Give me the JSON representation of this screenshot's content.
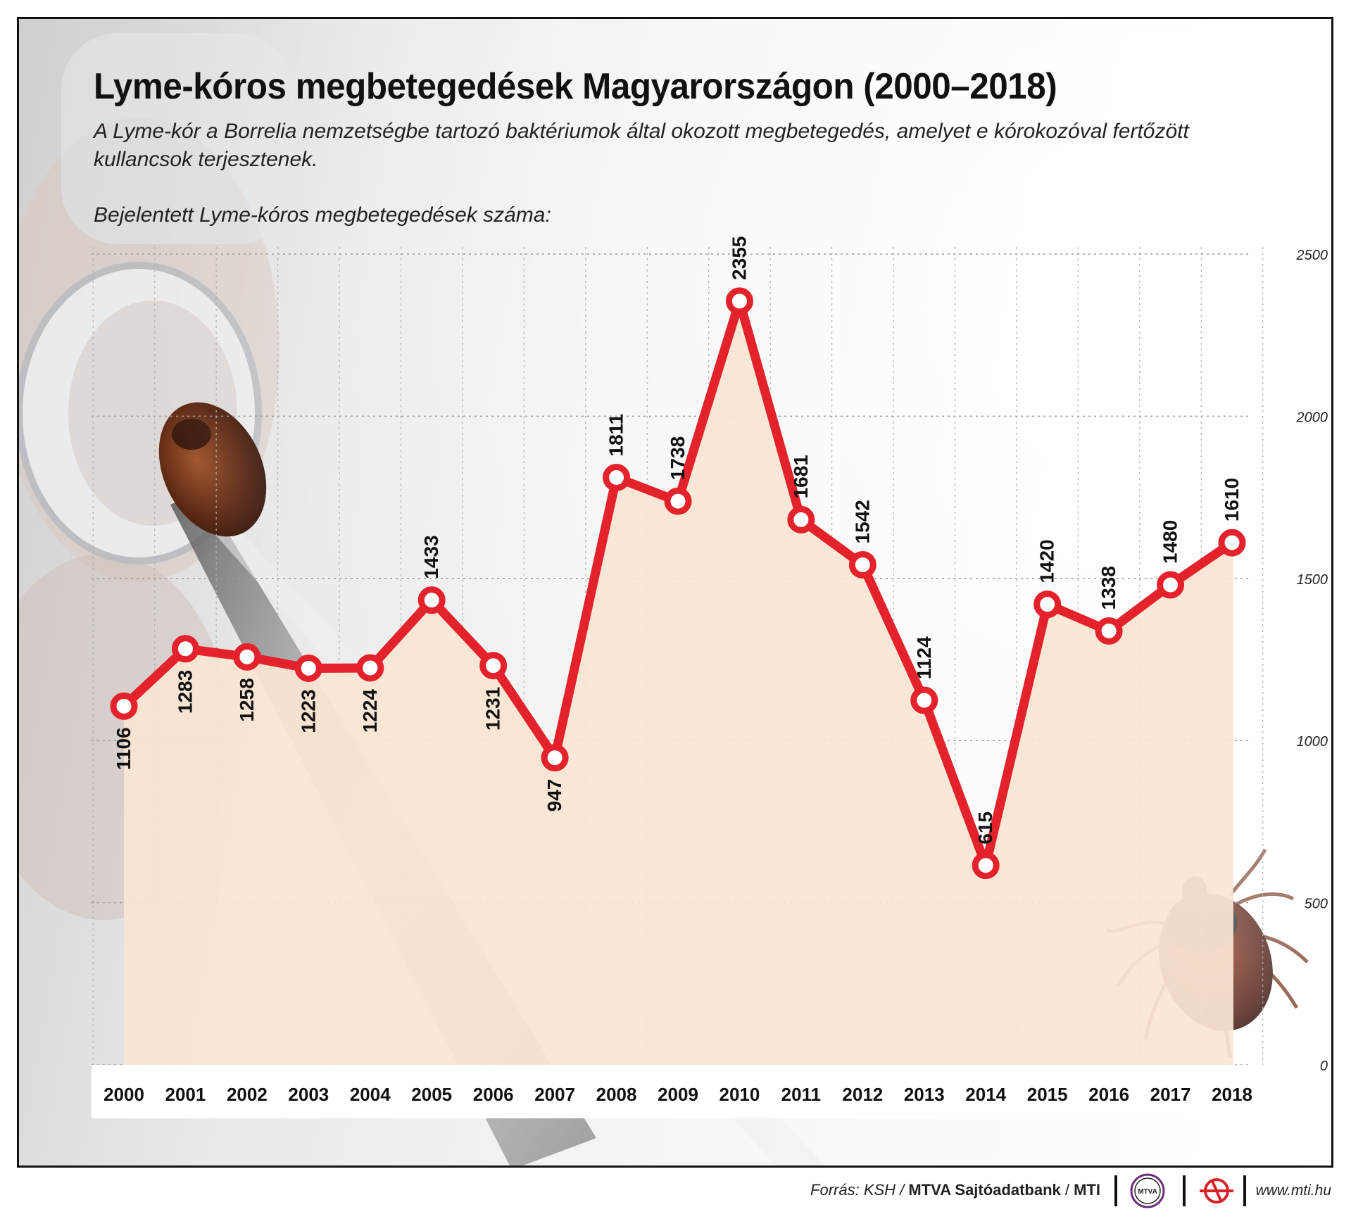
{
  "title": "Lyme-kóros megbetegedések Magyarországon (2000–2018)",
  "subtitle": "A Lyme-kór a Borrelia nemzetségbe tartozó baktériumok által okozott megbetegedés, amelyet e kórokozóval fertőzött kullancsok terjesztenek.",
  "chart_caption": "Bejelentett Lyme-kóros megbetegedések száma:",
  "colors": {
    "line": "#e3222b",
    "area": "#fbe5d3",
    "marker_fill": "#ffffff",
    "axis_band": "#ffffff",
    "text": "#111111"
  },
  "chart_data": {
    "type": "line",
    "title": "Bejelentett Lyme-kóros megbetegedések száma:",
    "x": [
      "2000",
      "2001",
      "2002",
      "2003",
      "2004",
      "2005",
      "2006",
      "2007",
      "2008",
      "2009",
      "2010",
      "2011",
      "2012",
      "2013",
      "2014",
      "2015",
      "2016",
      "2017",
      "2018"
    ],
    "series": [
      {
        "values": [
          1106,
          1283,
          1258,
          1223,
          1224,
          1433,
          1231,
          947,
          1811,
          1738,
          2355,
          1681,
          1542,
          1124,
          615,
          1420,
          1338,
          1480,
          1610
        ]
      }
    ],
    "ylim": [
      0,
      2500
    ],
    "yticks": [
      0,
      500,
      1000,
      1500,
      2000,
      2500
    ],
    "y_axis_position": "right",
    "grid": "dotted horizontal and vertical",
    "area_fill": true,
    "data_labels": "rotated vertical"
  },
  "footer": {
    "source_prefix": "Forrás: KSH /",
    "source_bold": "MTVA Sajtóadatbank",
    "source_mid": " / ",
    "source_mti": "MTI",
    "mtva_logo_text": "MTVA",
    "website": "www.mti.hu"
  }
}
